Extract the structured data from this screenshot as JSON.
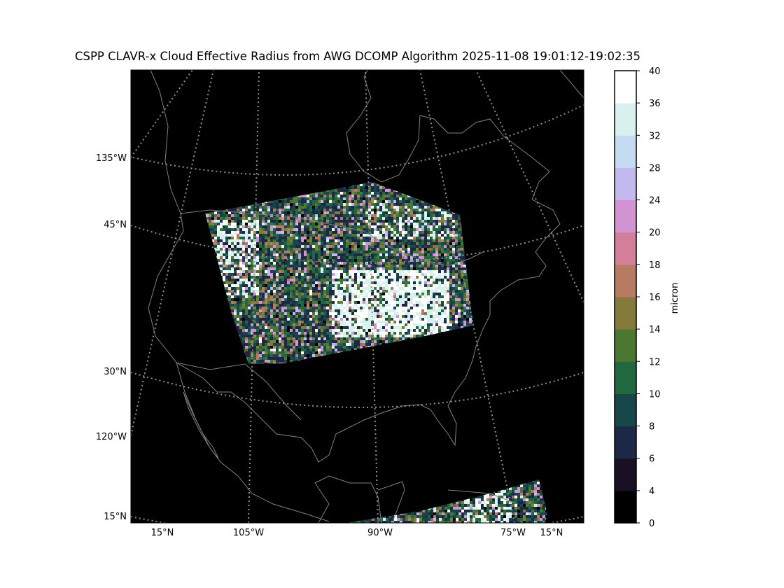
{
  "title": "CSPP CLAVR-x Cloud Effective Radius from AWG DCOMP Algorithm 2025-11-08 19:01:12-19:02:35",
  "map": {
    "projection": "lambert-conformal",
    "background_color": "#000000",
    "coastline_color": "#808080",
    "graticule_color": "#909090",
    "left_labels": [
      "135°W",
      "45°N",
      "30°N",
      "120°W",
      "15°N"
    ],
    "bottom_labels": [
      "15°N",
      "105°W",
      "90°W",
      "75°W",
      "15°N"
    ]
  },
  "colorbar": {
    "label": "micron",
    "ticks": [
      "0",
      "4",
      "6",
      "8",
      "10",
      "12",
      "14",
      "16",
      "18",
      "20",
      "24",
      "28",
      "32",
      "36",
      "40"
    ],
    "bins": [
      {
        "from": 0,
        "to": 4,
        "color": "#000000"
      },
      {
        "from": 4,
        "to": 6,
        "color": "#1a1024"
      },
      {
        "from": 6,
        "to": 8,
        "color": "#1c2846"
      },
      {
        "from": 8,
        "to": 10,
        "color": "#18474b"
      },
      {
        "from": 10,
        "to": 12,
        "color": "#21673f"
      },
      {
        "from": 12,
        "to": 14,
        "color": "#4a7833"
      },
      {
        "from": 14,
        "to": 16,
        "color": "#847b3b"
      },
      {
        "from": 16,
        "to": 18,
        "color": "#b77a62"
      },
      {
        "from": 18,
        "to": 20,
        "color": "#d47f9a"
      },
      {
        "from": 20,
        "to": 24,
        "color": "#d394d3"
      },
      {
        "from": 24,
        "to": 28,
        "color": "#c3b9ee"
      },
      {
        "from": 28,
        "to": 32,
        "color": "#c4dbf1"
      },
      {
        "from": 32,
        "to": 36,
        "color": "#d9f1ee"
      },
      {
        "from": 36,
        "to": 40,
        "color": "#ffffff"
      }
    ]
  }
}
